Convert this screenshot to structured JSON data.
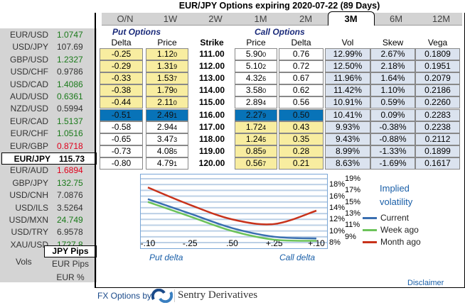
{
  "title": "EUR/JPY Options expiring 2020-07-22 (89 Days)",
  "pairs": [
    {
      "name": "EUR/USD",
      "value": "1.0747",
      "color": "g"
    },
    {
      "name": "USD/JPY",
      "value": "107.69",
      "color": ""
    },
    {
      "name": "GBP/USD",
      "value": "1.2327",
      "color": "g"
    },
    {
      "name": "USD/CHF",
      "value": "0.9786",
      "color": ""
    },
    {
      "name": "USD/CAD",
      "value": "1.4086",
      "color": "g"
    },
    {
      "name": "AUD/USD",
      "value": "0.6361",
      "color": "g"
    },
    {
      "name": "NZD/USD",
      "value": "0.5994",
      "color": ""
    },
    {
      "name": "EUR/CAD",
      "value": "1.5137",
      "color": "g"
    },
    {
      "name": "EUR/CHF",
      "value": "1.0516",
      "color": "g"
    },
    {
      "name": "EUR/GBP",
      "value": "0.8718",
      "color": "r"
    },
    {
      "name": "EUR/JPY",
      "value": "115.73",
      "color": "",
      "selected": true
    },
    {
      "name": "EUR/AUD",
      "value": "1.6894",
      "color": "r"
    },
    {
      "name": "GBP/JPY",
      "value": "132.75",
      "color": "g"
    },
    {
      "name": "USD/CNH",
      "value": "7.0876",
      "color": ""
    },
    {
      "name": "USD/ILS",
      "value": "3.5264",
      "color": ""
    },
    {
      "name": "USD/MXN",
      "value": "24.749",
      "color": "g"
    },
    {
      "name": "USD/TRY",
      "value": "6.9578",
      "color": ""
    },
    {
      "name": "XAU/USD",
      "value": "1727.8",
      "color": "g"
    }
  ],
  "vols": {
    "label": "Vols",
    "options": [
      "JPY Pips",
      "EUR Pips",
      "EUR %"
    ],
    "selected": "JPY Pips"
  },
  "tabs": [
    "O/N",
    "1W",
    "2W",
    "1M",
    "2M",
    "3M",
    "6M",
    "12M"
  ],
  "active_tab": "3M",
  "headers": {
    "put_group": "Put Options",
    "call_group": "Call Options",
    "put_delta": "Delta",
    "put_price": "Price",
    "strike": "Strike",
    "call_price": "Price",
    "call_delta": "Delta",
    "vol": "Vol",
    "skew": "Skew",
    "vega": "Vega"
  },
  "rows": [
    {
      "put_delta": "-0.25",
      "put_price": "1.12",
      "put_price_sub": "0",
      "strike": "111.00",
      "call_price": "5.90",
      "call_price_sub": "0",
      "call_delta": "0.76",
      "vol": "12.99%",
      "skew": "2.67%",
      "vega": "0.1809"
    },
    {
      "put_delta": "-0.29",
      "put_price": "1.31",
      "put_price_sub": "9",
      "strike": "112.00",
      "call_price": "5.10",
      "call_price_sub": "2",
      "call_delta": "0.72",
      "vol": "12.50%",
      "skew": "2.18%",
      "vega": "0.1951"
    },
    {
      "put_delta": "-0.33",
      "put_price": "1.53",
      "put_price_sub": "7",
      "strike": "113.00",
      "call_price": "4.32",
      "call_price_sub": "6",
      "call_delta": "0.67",
      "vol": "11.96%",
      "skew": "1.64%",
      "vega": "0.2079"
    },
    {
      "put_delta": "-0.38",
      "put_price": "1.79",
      "put_price_sub": "0",
      "strike": "114.00",
      "call_price": "3.58",
      "call_price_sub": "0",
      "call_delta": "0.62",
      "vol": "11.42%",
      "skew": "1.10%",
      "vega": "0.2186"
    },
    {
      "put_delta": "-0.44",
      "put_price": "2.11",
      "put_price_sub": "0",
      "strike": "115.00",
      "call_price": "2.89",
      "call_price_sub": "4",
      "call_delta": "0.56",
      "vol": "10.91%",
      "skew": "0.59%",
      "vega": "0.2260"
    },
    {
      "put_delta": "-0.51",
      "put_price": "2.49",
      "put_price_sub": "1",
      "strike": "116.00",
      "call_price": "2.27",
      "call_price_sub": "9",
      "call_delta": "0.50",
      "vol": "10.41%",
      "skew": "0.09%",
      "vega": "0.2283",
      "atm": true
    },
    {
      "put_delta": "-0.58",
      "put_price": "2.94",
      "put_price_sub": "4",
      "strike": "117.00",
      "call_price": "1.72",
      "call_price_sub": "4",
      "call_delta": "0.43",
      "vol": "9.93%",
      "skew": "-0.38%",
      "vega": "0.2238"
    },
    {
      "put_delta": "-0.65",
      "put_price": "3.47",
      "put_price_sub": "3",
      "strike": "118.00",
      "call_price": "1.24",
      "call_price_sub": "5",
      "call_delta": "0.35",
      "vol": "9.43%",
      "skew": "-0.88%",
      "vega": "0.2112"
    },
    {
      "put_delta": "-0.73",
      "put_price": "4.08",
      "put_price_sub": "5",
      "strike": "119.00",
      "call_price": "0.85",
      "call_price_sub": "9",
      "call_delta": "0.28",
      "vol": "8.99%",
      "skew": "-1.33%",
      "vega": "0.1899"
    },
    {
      "put_delta": "-0.80",
      "put_price": "4.79",
      "put_price_sub": "1",
      "strike": "120.00",
      "call_price": "0.56",
      "call_price_sub": "7",
      "call_delta": "0.21",
      "vol": "8.63%",
      "skew": "-1.69%",
      "vega": "0.1617"
    }
  ],
  "chart": {
    "x_ticks": [
      "-.10",
      "-.25",
      ".50",
      "+.25",
      "+.10"
    ],
    "y_ticks": [
      "8%",
      "9%",
      "10%",
      "11%",
      "12%",
      "13%",
      "14%",
      "15%",
      "16%",
      "17%",
      "18%",
      "19%"
    ],
    "ylim": [
      8,
      19
    ],
    "put_label": "Put delta",
    "call_label": "Call delta",
    "legend_title_1": "Implied",
    "legend_title_2": "volatility",
    "series": [
      {
        "name": "Current",
        "color": "#3a6fb0",
        "values": [
          15.5,
          13,
          10.5,
          9,
          8.7
        ]
      },
      {
        "name": "Week ago",
        "color": "#6cc35a",
        "values": [
          15,
          12.5,
          10,
          8.5,
          8.3
        ]
      },
      {
        "name": "Month ago",
        "color": "#c8321a",
        "values": [
          17.5,
          14.5,
          12,
          11.2,
          13.5
        ]
      }
    ]
  },
  "disclaimer": "Disclaimer",
  "footer": {
    "prefix": "FX Options by",
    "brand": "Sentry Derivatives"
  }
}
